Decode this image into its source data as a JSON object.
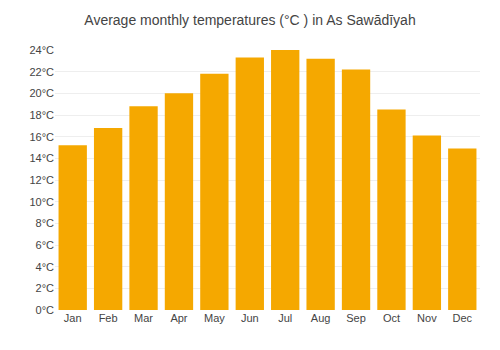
{
  "chart_data": {
    "type": "bar",
    "title": "Average monthly temperatures (°C ) in As Sawādīyah",
    "categories": [
      "Jan",
      "Feb",
      "Mar",
      "Apr",
      "May",
      "Jun",
      "Jul",
      "Aug",
      "Sep",
      "Oct",
      "Nov",
      "Dec"
    ],
    "values": [
      15.2,
      16.8,
      18.8,
      20.0,
      21.8,
      23.3,
      24.0,
      23.2,
      22.2,
      18.5,
      16.1,
      14.9
    ],
    "color": "#F5A800",
    "ylim": [
      0,
      24
    ],
    "yticks": [
      {
        "value": 0,
        "label": "0°C"
      },
      {
        "value": 2,
        "label": "2°C"
      },
      {
        "value": 4,
        "label": "4°C"
      },
      {
        "value": 6,
        "label": "6°C"
      },
      {
        "value": 8,
        "label": "8°C"
      },
      {
        "value": 10,
        "label": "10°C"
      },
      {
        "value": 12,
        "label": "12°C"
      },
      {
        "value": 14,
        "label": "14°C"
      },
      {
        "value": 16,
        "label": "16°C"
      },
      {
        "value": 18,
        "label": "18°C"
      },
      {
        "value": 20,
        "label": "20°C"
      },
      {
        "value": 22,
        "label": "22°C"
      },
      {
        "value": 24,
        "label": "24°C"
      }
    ],
    "grid": true
  }
}
